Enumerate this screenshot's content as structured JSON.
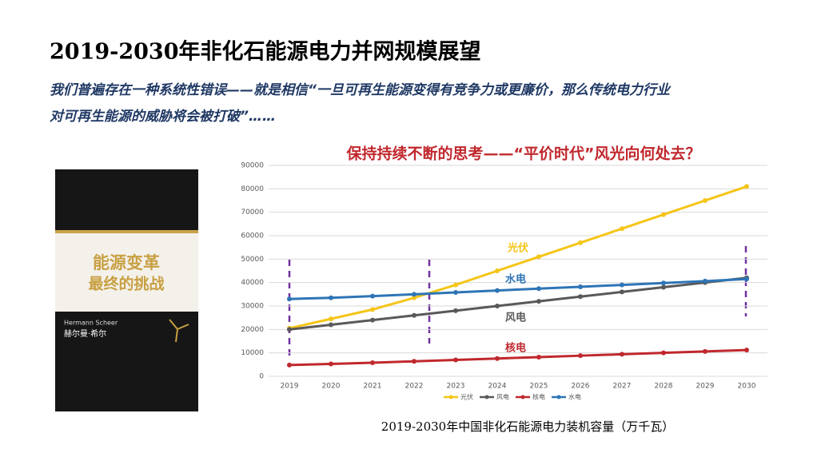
{
  "header": {
    "title": "2019-2030年非化石能源电力并网规模展望",
    "subtitle_lines": [
      "我们普遍存在一种系统性错误——就是相信“一旦可再生能源变得有竞争力或更廉价，那么传统电力行业",
      "对可再生能源的威胁将会被打破”……"
    ]
  },
  "book": {
    "title_lines": [
      "能源变革",
      "最终的挑战"
    ],
    "author_en": "Hermann Scheer",
    "author_cn": "赫尔曼·希尔"
  },
  "chart_data": {
    "type": "line",
    "title": "保持持续不断的思考——“平价时代”风光向何处去？",
    "caption": "2019-2030年中国非化石能源电力装机容量（万千瓦）",
    "categories": [
      "2019",
      "2020",
      "2021",
      "2022",
      "2023",
      "2024",
      "2025",
      "2026",
      "2027",
      "2028",
      "2029",
      "2030"
    ],
    "series": [
      {
        "name": "光伏",
        "color": "#f5c518",
        "values": [
          20500,
          24500,
          28500,
          33500,
          39000,
          45000,
          51000,
          57000,
          63000,
          69000,
          75000,
          81000
        ]
      },
      {
        "name": "风电",
        "color": "#595959",
        "values": [
          20000,
          22000,
          24000,
          26000,
          28000,
          30000,
          32000,
          34000,
          36000,
          38000,
          40000,
          42000
        ]
      },
      {
        "name": "核电",
        "color": "#c0282d",
        "values": [
          4800,
          5300,
          5800,
          6400,
          7000,
          7600,
          8200,
          8800,
          9400,
          10000,
          10600,
          11200
        ]
      },
      {
        "name": "水电",
        "color": "#2e75b6",
        "values": [
          33000,
          33500,
          34200,
          35000,
          35800,
          36600,
          37400,
          38200,
          39000,
          39800,
          40600,
          41500
        ]
      }
    ],
    "ylim": [
      0,
      90000
    ],
    "yticks": [
      0,
      10000,
      20000,
      30000,
      40000,
      50000,
      60000,
      70000,
      80000,
      90000
    ],
    "grid": true
  }
}
